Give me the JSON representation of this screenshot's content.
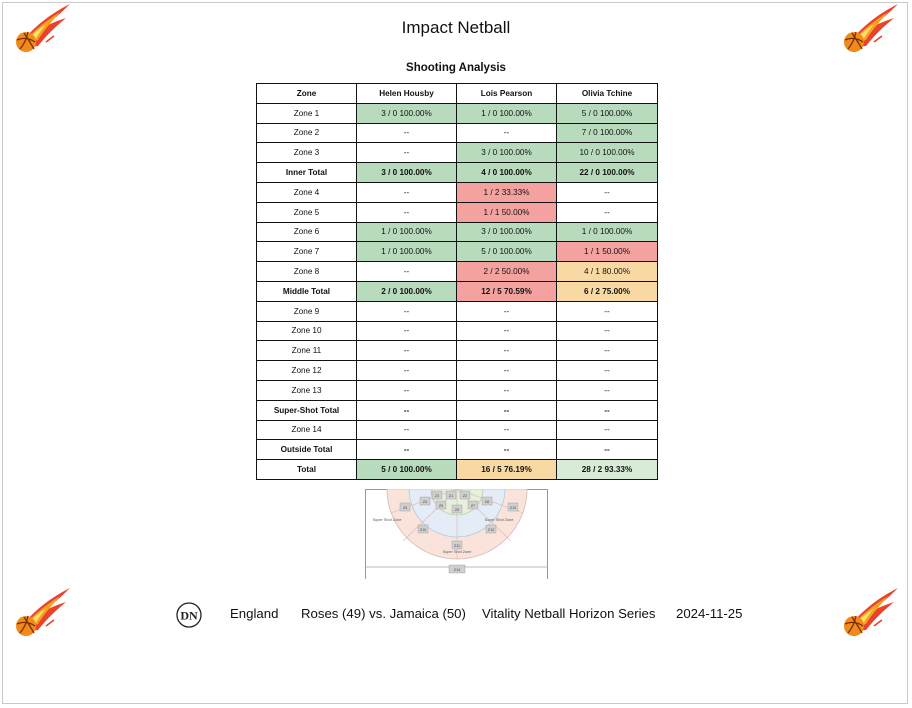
{
  "title": "Impact Netball",
  "subtitle": "Shooting Analysis",
  "table": {
    "headers": [
      "Zone",
      "Helen Housby",
      "Lois Pearson",
      "Olivia Tchine"
    ],
    "rows": [
      {
        "zone": "Zone 1",
        "bold": false,
        "cells": [
          {
            "text": "3 / 0 100.00%",
            "status": "green"
          },
          {
            "text": "1 / 0 100.00%",
            "status": "green"
          },
          {
            "text": "5 / 0 100.00%",
            "status": "green"
          }
        ]
      },
      {
        "zone": "Zone 2",
        "bold": false,
        "cells": [
          {
            "text": "--",
            "status": "blank"
          },
          {
            "text": "--",
            "status": "blank"
          },
          {
            "text": "7 / 0 100.00%",
            "status": "green"
          }
        ]
      },
      {
        "zone": "Zone 3",
        "bold": false,
        "cells": [
          {
            "text": "--",
            "status": "blank"
          },
          {
            "text": "3 / 0 100.00%",
            "status": "green"
          },
          {
            "text": "10 / 0 100.00%",
            "status": "green"
          }
        ]
      },
      {
        "zone": "Inner Total",
        "bold": true,
        "cells": [
          {
            "text": "3 / 0 100.00%",
            "status": "green"
          },
          {
            "text": "4 / 0 100.00%",
            "status": "green"
          },
          {
            "text": "22 / 0 100.00%",
            "status": "green"
          }
        ]
      },
      {
        "zone": "Zone 4",
        "bold": false,
        "cells": [
          {
            "text": "--",
            "status": "blank"
          },
          {
            "text": "1 / 2 33.33%",
            "status": "red"
          },
          {
            "text": "--",
            "status": "blank"
          }
        ]
      },
      {
        "zone": "Zone 5",
        "bold": false,
        "cells": [
          {
            "text": "--",
            "status": "blank"
          },
          {
            "text": "1 / 1 50.00%",
            "status": "red"
          },
          {
            "text": "--",
            "status": "blank"
          }
        ]
      },
      {
        "zone": "Zone 6",
        "bold": false,
        "cells": [
          {
            "text": "1 / 0 100.00%",
            "status": "green"
          },
          {
            "text": "3 / 0 100.00%",
            "status": "green"
          },
          {
            "text": "1 / 0 100.00%",
            "status": "green"
          }
        ]
      },
      {
        "zone": "Zone 7",
        "bold": false,
        "cells": [
          {
            "text": "1 / 0 100.00%",
            "status": "green"
          },
          {
            "text": "5 / 0 100.00%",
            "status": "green"
          },
          {
            "text": "1 / 1 50.00%",
            "status": "red"
          }
        ]
      },
      {
        "zone": "Zone 8",
        "bold": false,
        "cells": [
          {
            "text": "--",
            "status": "blank"
          },
          {
            "text": "2 / 2 50.00%",
            "status": "red"
          },
          {
            "text": "4 / 1 80.00%",
            "status": "orange"
          }
        ]
      },
      {
        "zone": "Middle Total",
        "bold": true,
        "cells": [
          {
            "text": "2 / 0 100.00%",
            "status": "green"
          },
          {
            "text": "12 / 5 70.59%",
            "status": "red"
          },
          {
            "text": "6 / 2 75.00%",
            "status": "orange"
          }
        ]
      },
      {
        "zone": "Zone 9",
        "bold": false,
        "cells": [
          {
            "text": "--",
            "status": "blank"
          },
          {
            "text": "--",
            "status": "blank"
          },
          {
            "text": "--",
            "status": "blank"
          }
        ]
      },
      {
        "zone": "Zone 10",
        "bold": false,
        "cells": [
          {
            "text": "--",
            "status": "blank"
          },
          {
            "text": "--",
            "status": "blank"
          },
          {
            "text": "--",
            "status": "blank"
          }
        ]
      },
      {
        "zone": "Zone 11",
        "bold": false,
        "cells": [
          {
            "text": "--",
            "status": "blank"
          },
          {
            "text": "--",
            "status": "blank"
          },
          {
            "text": "--",
            "status": "blank"
          }
        ]
      },
      {
        "zone": "Zone 12",
        "bold": false,
        "cells": [
          {
            "text": "--",
            "status": "blank"
          },
          {
            "text": "--",
            "status": "blank"
          },
          {
            "text": "--",
            "status": "blank"
          }
        ]
      },
      {
        "zone": "Zone 13",
        "bold": false,
        "cells": [
          {
            "text": "--",
            "status": "blank"
          },
          {
            "text": "--",
            "status": "blank"
          },
          {
            "text": "--",
            "status": "blank"
          }
        ]
      },
      {
        "zone": "Super-Shot Total",
        "bold": true,
        "cells": [
          {
            "text": "--",
            "status": "blank"
          },
          {
            "text": "--",
            "status": "blank"
          },
          {
            "text": "--",
            "status": "blank"
          }
        ]
      },
      {
        "zone": "Zone 14",
        "bold": false,
        "cells": [
          {
            "text": "--",
            "status": "blank"
          },
          {
            "text": "--",
            "status": "blank"
          },
          {
            "text": "--",
            "status": "blank"
          }
        ]
      },
      {
        "zone": "Outside Total",
        "bold": true,
        "cells": [
          {
            "text": "--",
            "status": "blank"
          },
          {
            "text": "--",
            "status": "blank"
          },
          {
            "text": "--",
            "status": "blank"
          }
        ]
      },
      {
        "zone": "Total",
        "bold": true,
        "cells": [
          {
            "text": "5 / 0 100.00%",
            "status": "green"
          },
          {
            "text": "16 / 5 76.19%",
            "status": "orange"
          },
          {
            "text": "28 / 2 93.33%",
            "status": "lightgreen"
          }
        ]
      }
    ]
  },
  "status_colors": {
    "green": "#b9dbbd",
    "red": "#f4a2a0",
    "orange": "#f9d9a3",
    "lightgreen": "#d7ebd6",
    "blank": "#ffffff"
  },
  "court_diagram": {
    "zone_labels": [
      "Z1",
      "Z2",
      "Z3",
      "Z4",
      "Z5",
      "Z6",
      "Z7",
      "Z8",
      "Z9",
      "Z10",
      "Z11",
      "Z12",
      "Z13",
      "Z14"
    ],
    "area_labels": [
      "Super Shot Zone",
      "Super Shot Zone",
      "Super Shot Zone"
    ]
  },
  "icons": {
    "corner_logo": "netball-fireball-logo",
    "footer_brand": "dn-monogram-logo"
  },
  "footer": {
    "brand_text": "DN",
    "team": "England",
    "match": "Roses (49) vs. Jamaica (50)",
    "competition": "Vitality Netball Horizon Series",
    "date": "2024-11-25"
  }
}
